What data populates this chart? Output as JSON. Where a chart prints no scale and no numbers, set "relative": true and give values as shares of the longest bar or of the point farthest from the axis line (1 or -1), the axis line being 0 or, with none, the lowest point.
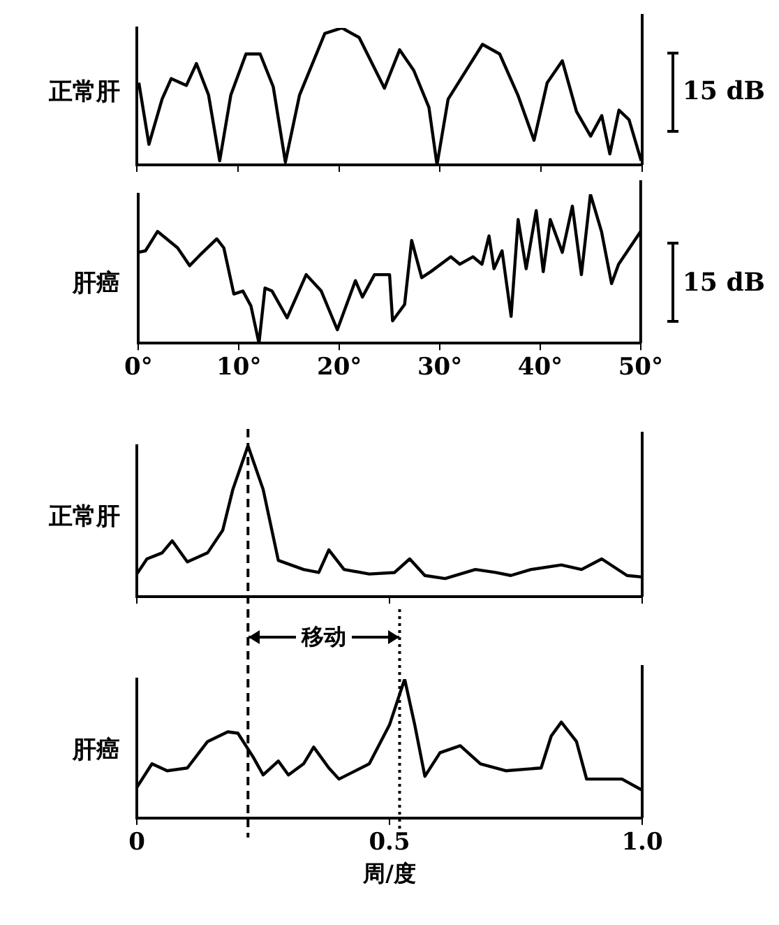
{
  "chart_data": [
    {
      "type": "line",
      "ylabel": "正常肝",
      "relative": true,
      "xlim": [
        0,
        50
      ],
      "xticks": [
        0,
        10,
        20,
        30,
        40,
        50
      ],
      "tick_labels": false,
      "marker": "none",
      "annotations": [
        "15 dB"
      ],
      "series": [
        {
          "color": "#000000",
          "x": [
            0.2,
            1.2,
            2.5,
            3.4,
            4.9,
            5.9,
            7.1,
            8.2,
            9.3,
            10.8,
            12.2,
            13.5,
            14.7,
            16.1,
            18.6,
            20.3,
            22.0,
            24.5,
            26.0,
            27.4,
            28.9,
            29.7,
            30.8,
            34.2,
            35.9,
            37.7,
            39.3,
            40.6,
            42.1,
            43.5,
            44.9,
            46.0,
            46.8,
            47.7,
            48.7,
            49.9
          ],
          "values": [
            0.6,
            0.15,
            0.48,
            0.63,
            0.58,
            0.74,
            0.51,
            0.03,
            0.51,
            0.81,
            0.81,
            0.57,
            0.02,
            0.51,
            0.96,
            1.0,
            0.93,
            0.56,
            0.84,
            0.69,
            0.42,
            0.0,
            0.48,
            0.88,
            0.81,
            0.51,
            0.18,
            0.6,
            0.76,
            0.39,
            0.21,
            0.36,
            0.08,
            0.4,
            0.33,
            0.03
          ]
        }
      ]
    },
    {
      "type": "line",
      "ylabel": "肝癌",
      "relative": true,
      "xlim": [
        0,
        50
      ],
      "xticks": [
        {
          "value": 0,
          "label": "0°"
        },
        {
          "value": 10,
          "label": "10°"
        },
        {
          "value": 20,
          "label": "20°"
        },
        {
          "value": 30,
          "label": "30°"
        },
        {
          "value": 40,
          "label": "40°"
        },
        {
          "value": 50,
          "label": "50°"
        }
      ],
      "tick_labels": "x",
      "marker": "none",
      "annotations": [
        "15 dB"
      ],
      "series": [
        {
          "color": "#000000",
          "x": [
            0,
            0.7,
            1.9,
            3.9,
            5.1,
            6.1,
            7.8,
            8.5,
            9.5,
            10.4,
            11.2,
            12.0,
            12.6,
            13.3,
            14.8,
            16.7,
            18.2,
            19.8,
            21.6,
            22.3,
            23.5,
            25.0,
            25.3,
            26.5,
            27.2,
            28.2,
            29.1,
            31.1,
            32.0,
            33.3,
            34.2,
            34.9,
            35.4,
            36.2,
            37.1,
            37.8,
            38.6,
            39.6,
            40.3,
            41.0,
            42.2,
            43.2,
            44.1,
            45.0,
            46.1,
            47.1,
            47.8,
            50
          ],
          "values": [
            0.61,
            0.62,
            0.75,
            0.64,
            0.52,
            0.59,
            0.7,
            0.64,
            0.33,
            0.35,
            0.25,
            0.0,
            0.37,
            0.35,
            0.17,
            0.46,
            0.35,
            0.09,
            0.42,
            0.31,
            0.46,
            0.46,
            0.15,
            0.26,
            0.69,
            0.44,
            0.48,
            0.58,
            0.53,
            0.58,
            0.53,
            0.72,
            0.5,
            0.62,
            0.18,
            0.83,
            0.5,
            0.89,
            0.48,
            0.83,
            0.61,
            0.92,
            0.46,
            1.0,
            0.75,
            0.4,
            0.53,
            0.75
          ]
        }
      ]
    },
    {
      "type": "line",
      "ylabel": "正常肝",
      "relative": true,
      "xlim": [
        0,
        1
      ],
      "xticks": [
        0,
        0.5,
        1
      ],
      "tick_labels": false,
      "marker": "none",
      "ref_lines": [
        {
          "axis": "x",
          "value": 0.22,
          "color": "#000000",
          "line_style": "dashed"
        }
      ],
      "series": [
        {
          "color": "#000000",
          "x": [
            0,
            0.02,
            0.05,
            0.07,
            0.1,
            0.14,
            0.17,
            0.19,
            0.22,
            0.25,
            0.28,
            0.33,
            0.36,
            0.38,
            0.41,
            0.46,
            0.51,
            0.54,
            0.57,
            0.61,
            0.67,
            0.71,
            0.74,
            0.78,
            0.84,
            0.88,
            0.92,
            0.97,
            1.0
          ],
          "values": [
            0.15,
            0.25,
            0.29,
            0.37,
            0.23,
            0.29,
            0.44,
            0.71,
            1.0,
            0.71,
            0.24,
            0.18,
            0.16,
            0.31,
            0.18,
            0.15,
            0.16,
            0.25,
            0.14,
            0.12,
            0.18,
            0.16,
            0.14,
            0.18,
            0.21,
            0.18,
            0.25,
            0.14,
            0.13
          ]
        }
      ]
    },
    {
      "type": "line",
      "ylabel": "肝癌",
      "xlabel": "周/度",
      "relative": true,
      "xlim": [
        0,
        1
      ],
      "xticks": [
        0,
        0.5,
        {
          "value": 1,
          "label": "1.0"
        }
      ],
      "tick_labels": "x",
      "marker": "none",
      "annotations": [
        "移动"
      ],
      "ref_lines": [
        {
          "axis": "x",
          "value": 0.22,
          "color": "#000000",
          "line_style": "dashed"
        },
        {
          "axis": "x",
          "value": 0.52,
          "color": "#000000",
          "line_style": "dotted"
        }
      ],
      "series": [
        {
          "color": "#000000",
          "x": [
            0,
            0.03,
            0.06,
            0.1,
            0.14,
            0.18,
            0.2,
            0.23,
            0.25,
            0.28,
            0.3,
            0.33,
            0.35,
            0.38,
            0.4,
            0.46,
            0.5,
            0.53,
            0.55,
            0.57,
            0.6,
            0.64,
            0.68,
            0.73,
            0.8,
            0.82,
            0.84,
            0.87,
            0.89,
            0.96,
            1.0
          ],
          "values": [
            0.22,
            0.39,
            0.34,
            0.36,
            0.55,
            0.62,
            0.61,
            0.44,
            0.31,
            0.41,
            0.31,
            0.39,
            0.51,
            0.36,
            0.28,
            0.39,
            0.67,
            1.0,
            0.67,
            0.3,
            0.47,
            0.52,
            0.39,
            0.34,
            0.36,
            0.59,
            0.69,
            0.55,
            0.28,
            0.28,
            0.2
          ]
        }
      ]
    }
  ]
}
